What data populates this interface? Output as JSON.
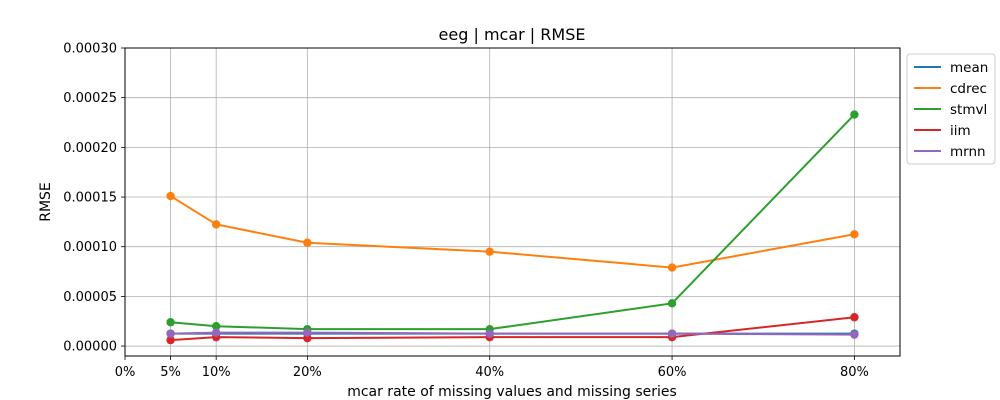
{
  "chart_data": {
    "type": "line",
    "title": "eeg | mcar | RMSE",
    "xlabel": "mcar rate of missing values and missing series",
    "ylabel": "RMSE",
    "x": [
      5,
      10,
      20,
      40,
      60,
      80
    ],
    "xlim": [
      0,
      85
    ],
    "x_ticks": [
      0,
      5,
      10,
      20,
      40,
      60,
      80
    ],
    "x_tick_labels": [
      "0%",
      "5%",
      "10%",
      "20%",
      "40%",
      "60%",
      "80%"
    ],
    "ylim": [
      -1e-05,
      0.0003
    ],
    "y_ticks": [
      0,
      5e-05,
      0.0001,
      0.00015,
      0.0002,
      0.00025,
      0.0003
    ],
    "y_tick_labels": [
      "0.00000",
      "0.00005",
      "0.00010",
      "0.00015",
      "0.00020",
      "0.00025",
      "0.00030"
    ],
    "grid": true,
    "legend_position": "outside-right-top",
    "series": [
      {
        "name": "mean",
        "color": "#1f77b4",
        "values": [
          1.25e-05,
          1.25e-05,
          1.25e-05,
          1.25e-05,
          1.25e-05,
          1.25e-05
        ]
      },
      {
        "name": "cdrec",
        "color": "#ff7f0e",
        "values": [
          0.000151,
          0.0001225,
          0.000104,
          9.5e-05,
          7.9e-05,
          0.0001125
        ]
      },
      {
        "name": "stmvl",
        "color": "#2ca02c",
        "values": [
          2.4e-05,
          2e-05,
          1.7e-05,
          1.7e-05,
          4.3e-05,
          0.000233
        ]
      },
      {
        "name": "iim",
        "color": "#d62728",
        "values": [
          6e-06,
          9e-06,
          8e-06,
          9e-06,
          9e-06,
          2.9e-05
        ]
      },
      {
        "name": "mrnn",
        "color": "#9467bd",
        "values": [
          1.25e-05,
          1.35e-05,
          1.35e-05,
          1.25e-05,
          1.25e-05,
          1.15e-05
        ]
      }
    ]
  }
}
